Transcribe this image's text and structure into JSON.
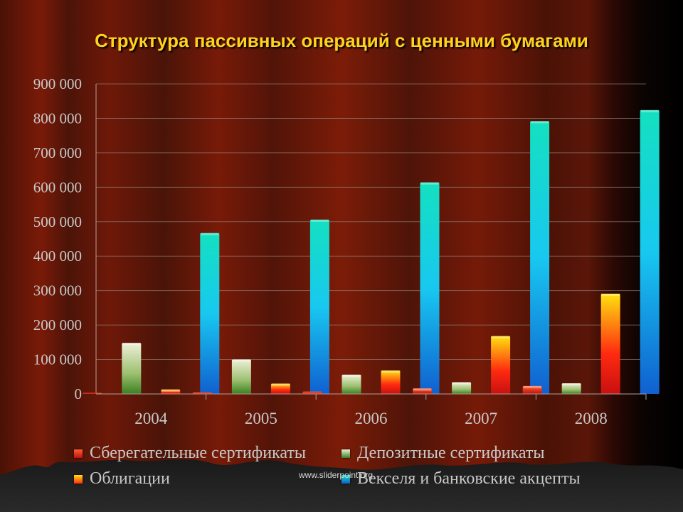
{
  "title": "Структура пассивных операций с ценными бумагами",
  "watermark": "www.sliderpoint.org",
  "colors": {
    "savings": "#e8241a",
    "deposit": "#6aa040",
    "bonds": "#f0c010",
    "bills": "#12a8e8"
  },
  "chart_data": {
    "type": "bar",
    "categories": [
      "2004",
      "2005",
      "2006",
      "2007",
      "2008"
    ],
    "yticks": [
      "0",
      "100 000",
      "200 000",
      "300 000",
      "400 000",
      "500 000",
      "600 000",
      "700 000",
      "800 000",
      "900 000"
    ],
    "ylim": [
      0,
      900000
    ],
    "grid": true,
    "legend_position": "bottom",
    "series": [
      {
        "name": "Сберегательные сертификаты",
        "values": [
          2000,
          5000,
          7000,
          16000,
          23000
        ]
      },
      {
        "name": "Депозитные сертификаты",
        "values": [
          148000,
          100000,
          56000,
          34000,
          31000
        ]
      },
      {
        "name": "Облигации",
        "values": [
          13000,
          30000,
          68000,
          168000,
          291000
        ]
      },
      {
        "name": "Векселя и банковские акцепты",
        "values": [
          467000,
          506000,
          614000,
          792000,
          824000
        ]
      }
    ]
  }
}
